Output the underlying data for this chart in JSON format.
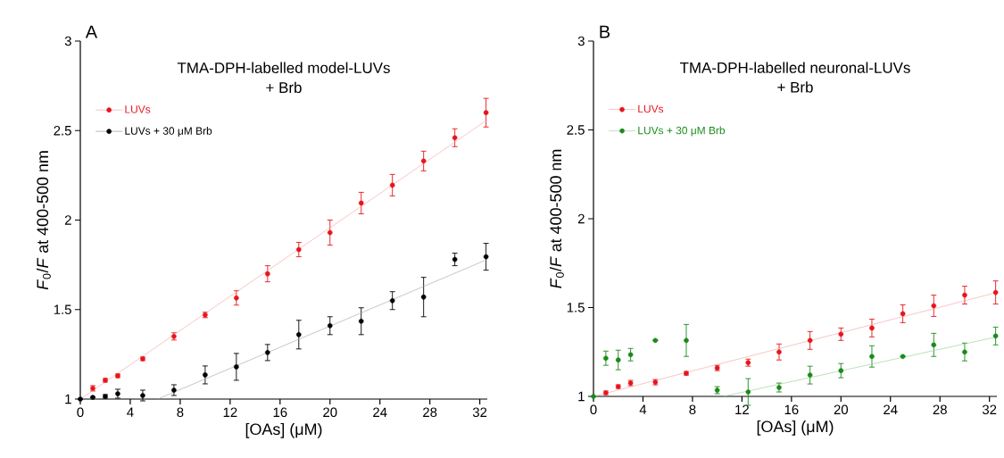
{
  "chart_data": [
    {
      "type": "scatter",
      "title": "TMA-DPH-labelled model-LUVs",
      "subtitle": "+ Brb",
      "xlabel": "[OAs] (μM)",
      "ylabel": "*F*$_{0}$/*F* at 400-500 nm",
      "annotations": [
        "A"
      ],
      "xlim": [
        0,
        32.6
      ],
      "ylim": [
        1,
        3
      ],
      "xticks": [
        0,
        4,
        8,
        12,
        16,
        20,
        24,
        28,
        32
      ],
      "yticks": [
        1,
        1.5,
        2,
        2.5,
        3
      ],
      "legend": "top left",
      "marker": "circle",
      "x": [
        0,
        1,
        2,
        3,
        5,
        7.5,
        10,
        12.5,
        15,
        17.5,
        20,
        22.5,
        25,
        27.5,
        30,
        32.5
      ],
      "series": [
        {
          "name": "LUVs",
          "color": "#e8141c",
          "values": [
            null,
            1.06,
            1.105,
            1.13,
            1.225,
            1.35,
            1.47,
            1.565,
            1.7,
            1.835,
            1.93,
            2.095,
            2.195,
            2.33,
            2.46,
            2.6
          ],
          "errors": [
            null,
            0.015,
            0.01,
            0.01,
            0.01,
            0.02,
            0.015,
            0.04,
            0.045,
            0.04,
            0.07,
            0.06,
            0.06,
            0.055,
            0.05,
            0.08
          ]
        },
        {
          "name": "LUVs + 30 μM Brb",
          "color": "#000000",
          "values": [
            1,
            1.01,
            1.015,
            1.03,
            1.02,
            1.05,
            1.135,
            1.18,
            1.26,
            1.36,
            1.41,
            1.435,
            1.55,
            1.57,
            1.78,
            1.795
          ],
          "errors": [
            null,
            null,
            0.01,
            0.025,
            0.03,
            0.03,
            0.05,
            0.075,
            0.045,
            0.08,
            0.05,
            0.075,
            0.05,
            0.11,
            0.035,
            0.075
          ]
        },
        {
          "type": "line",
          "color": "#f4a0a0",
          "marker": "none",
          "x": [
            0,
            32.6
          ],
          "values": [
            1,
            2.56
          ]
        },
        {
          "type": "line",
          "color": "#a0a0a0",
          "marker": "none",
          "x": [
            6.2,
            32.6
          ],
          "values": [
            1,
            1.78
          ]
        }
      ]
    },
    {
      "type": "scatter",
      "title": "TMA-DPH-labelled neuronal-LUVs",
      "subtitle": "+ Brb",
      "xlabel": "[OAs] (μM)",
      "ylabel": "*F*$_{0}$/*F* at 400-500 nm",
      "annotations": [
        "B"
      ],
      "xlim": [
        0,
        32.6
      ],
      "ylim": [
        1,
        3
      ],
      "xticks": [
        0,
        4,
        8,
        12,
        16,
        20,
        24,
        28,
        32
      ],
      "yticks": [
        1,
        1.5,
        2,
        2.5,
        3
      ],
      "legend": "top left",
      "marker": "circle",
      "x": [
        0,
        1,
        2,
        3,
        5,
        7.5,
        10,
        12.5,
        15,
        17.5,
        20,
        22.5,
        25,
        27.5,
        30,
        32.5
      ],
      "series": [
        {
          "name": "LUVs",
          "color": "#e8141c",
          "values": [
            null,
            1.02,
            1.055,
            1.075,
            1.08,
            1.13,
            1.16,
            1.19,
            1.25,
            1.315,
            1.35,
            1.385,
            1.465,
            1.51,
            1.57,
            1.585
          ],
          "errors": [
            null,
            0.01,
            0.01,
            0.015,
            0.015,
            0.01,
            0.015,
            0.02,
            0.045,
            0.05,
            0.035,
            0.05,
            0.05,
            0.06,
            0.05,
            0.065
          ]
        },
        {
          "name": "LUVs + 30 μM Brb",
          "color": "#1a8a1a",
          "values": [
            1,
            1.215,
            1.205,
            1.235,
            1.315,
            1.315,
            1.035,
            1.025,
            1.05,
            1.12,
            1.145,
            1.225,
            1.225,
            1.29,
            1.25,
            1.34
          ],
          "errors": [
            null,
            0.04,
            0.055,
            0.035,
            null,
            0.09,
            0.02,
            0.075,
            0.025,
            0.05,
            0.04,
            0.06,
            null,
            0.065,
            0.05,
            0.05
          ]
        },
        {
          "type": "line",
          "color": "#f4a0a0",
          "marker": "none",
          "x": [
            0,
            32.6
          ],
          "values": [
            1,
            1.585
          ]
        },
        {
          "type": "line",
          "color": "#8fcf8f",
          "marker": "none",
          "x": [
            10.5,
            32.6
          ],
          "values": [
            1,
            1.335
          ]
        }
      ]
    }
  ]
}
